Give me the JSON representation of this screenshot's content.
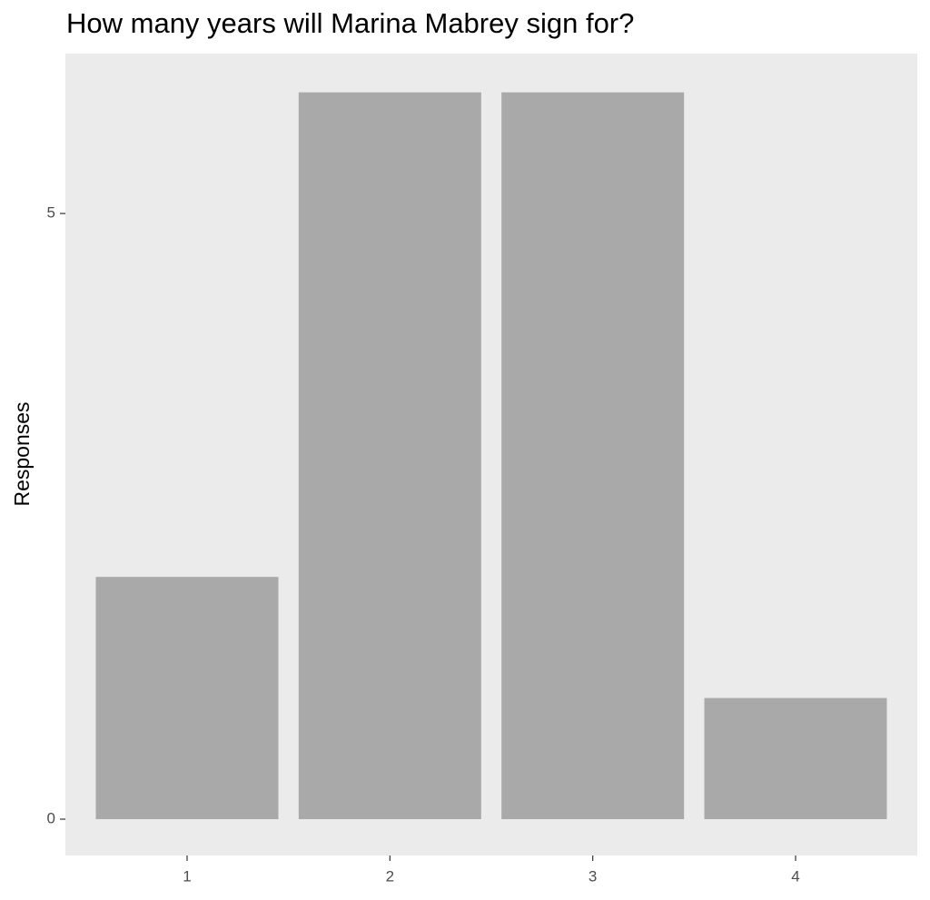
{
  "chart_data": {
    "type": "bar",
    "title": "How many years will Marina Mabrey sign for?",
    "y_label": "Responses",
    "categories": [
      "1",
      "2",
      "3",
      "4"
    ],
    "values": [
      2,
      6,
      6,
      1
    ],
    "color": "#a9a9a9",
    "ylim": [
      -0.3,
      6.32
    ],
    "yticks": [
      0,
      5
    ],
    "grid": false
  }
}
